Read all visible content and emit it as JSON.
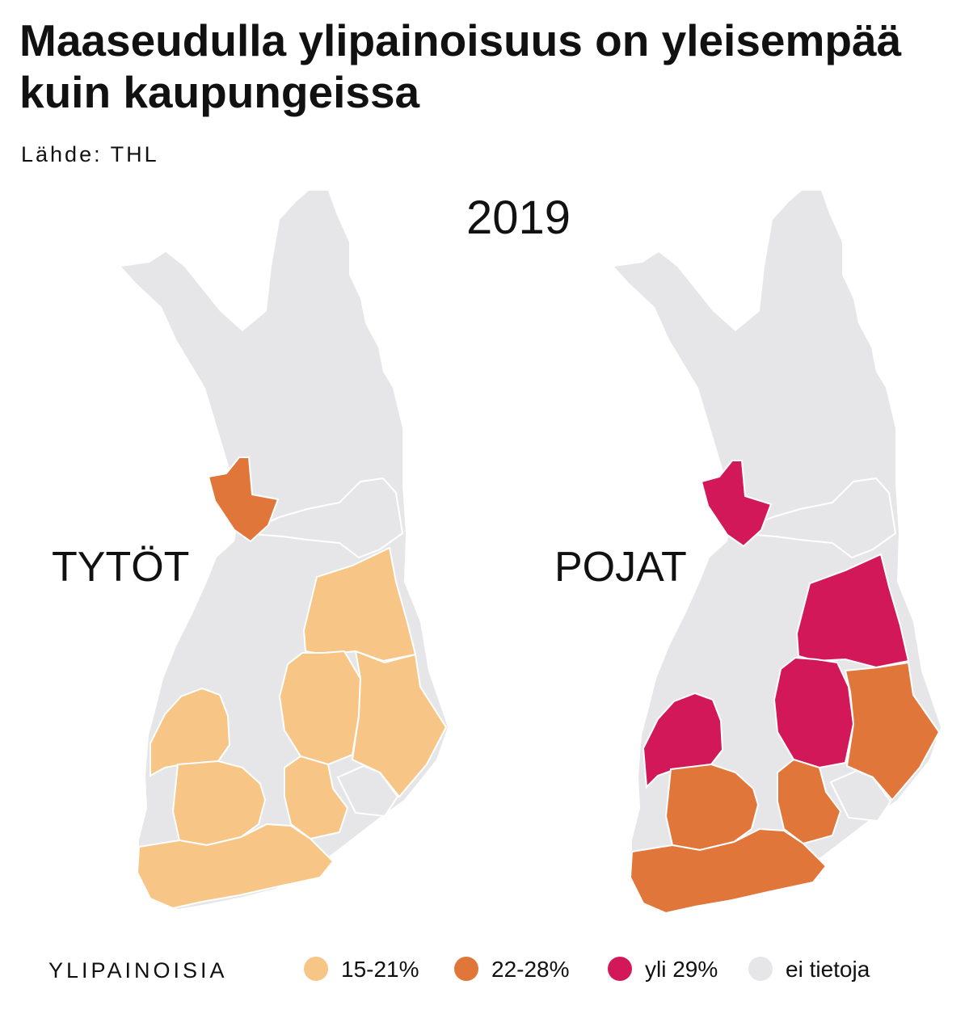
{
  "title": "Maaseudulla ylipainoisuus on yleisempää kuin kaupungeissa",
  "source": "Lähde: THL",
  "year": "2019",
  "panels": [
    {
      "label": "TYTÖT",
      "highlights": [
        "15-21%",
        "22-28%"
      ]
    },
    {
      "label": "POJAT",
      "highlights": [
        "22-28%",
        "yli 29%"
      ]
    }
  ],
  "legend": {
    "title": "YLIPAINOISIA",
    "items": [
      {
        "label": "15-21%",
        "color": "#f7c585"
      },
      {
        "label": "22-28%",
        "color": "#e0763a"
      },
      {
        "label": "yli 29%",
        "color": "#d3185a"
      },
      {
        "label": "ei tietoja",
        "color": "#e6e6e8"
      }
    ]
  },
  "colors": {
    "no_data": "#e6e6e8",
    "border": "#ffffff"
  }
}
